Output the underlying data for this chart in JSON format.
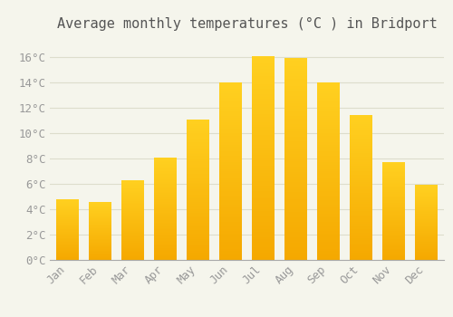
{
  "title": "Average monthly temperatures (°C ) in Bridport",
  "months": [
    "Jan",
    "Feb",
    "Mar",
    "Apr",
    "May",
    "Jun",
    "Jul",
    "Aug",
    "Sep",
    "Oct",
    "Nov",
    "Dec"
  ],
  "values": [
    4.8,
    4.6,
    6.3,
    8.1,
    11.1,
    14.0,
    16.1,
    15.9,
    14.0,
    11.4,
    7.7,
    5.9
  ],
  "bar_color_bottom": "#F5A800",
  "bar_color_top": "#FFCC00",
  "background_color": "#F5F5EC",
  "grid_color": "#DDDDCC",
  "text_color": "#999999",
  "ylim": [
    0,
    17.5
  ],
  "yticks": [
    0,
    2,
    4,
    6,
    8,
    10,
    12,
    14,
    16
  ],
  "ytick_labels": [
    "0°C",
    "2°C",
    "4°C",
    "6°C",
    "8°C",
    "10°C",
    "12°C",
    "14°C",
    "16°C"
  ],
  "title_fontsize": 11,
  "tick_fontsize": 9,
  "title_color": "#555555"
}
